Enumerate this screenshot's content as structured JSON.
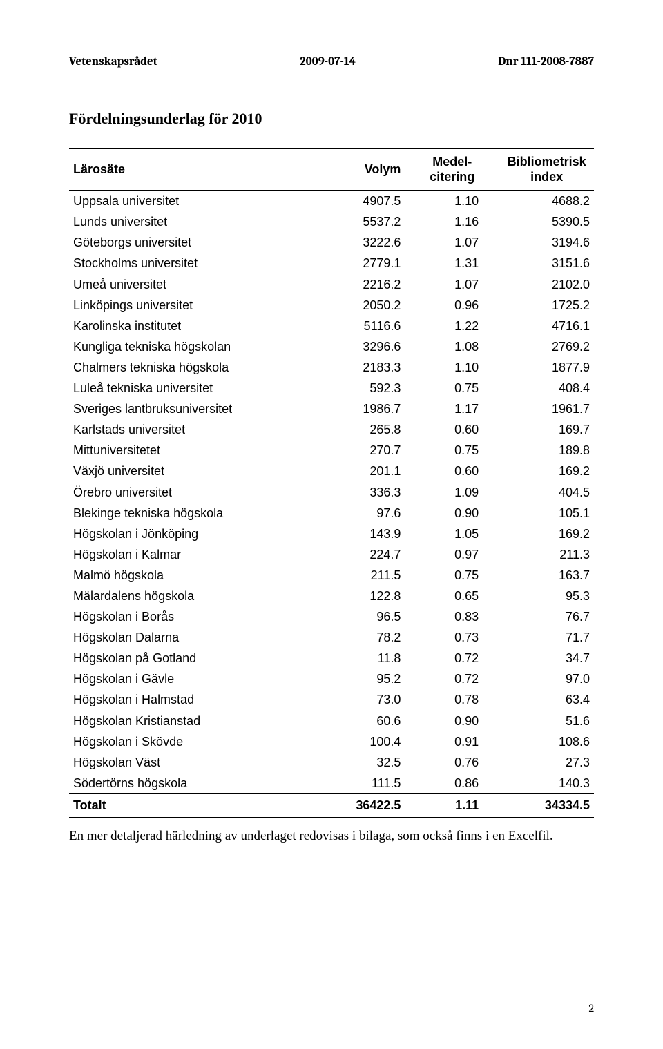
{
  "header": {
    "org": "Vetenskapsrådet",
    "date": "2009-07-14",
    "ref": "Dnr 111-2008-7887"
  },
  "title": "Fördelningsunderlag för 2010",
  "table": {
    "columns": {
      "larosate": "Lärosäte",
      "volym": "Volym",
      "medel_line1": "Medel-",
      "medel_line2": "citering",
      "biblio_line1": "Bibliometrisk",
      "biblio_line2": "index"
    },
    "rows": [
      {
        "name": "Uppsala universitet",
        "volym": "4907.5",
        "medel": "1.10",
        "index": "4688.2"
      },
      {
        "name": "Lunds universitet",
        "volym": "5537.2",
        "medel": "1.16",
        "index": "5390.5"
      },
      {
        "name": "Göteborgs universitet",
        "volym": "3222.6",
        "medel": "1.07",
        "index": "3194.6"
      },
      {
        "name": "Stockholms universitet",
        "volym": "2779.1",
        "medel": "1.31",
        "index": "3151.6"
      },
      {
        "name": "Umeå universitet",
        "volym": "2216.2",
        "medel": "1.07",
        "index": "2102.0"
      },
      {
        "name": "Linköpings universitet",
        "volym": "2050.2",
        "medel": "0.96",
        "index": "1725.2"
      },
      {
        "name": "Karolinska institutet",
        "volym": "5116.6",
        "medel": "1.22",
        "index": "4716.1"
      },
      {
        "name": "Kungliga tekniska högskolan",
        "volym": "3296.6",
        "medel": "1.08",
        "index": "2769.2"
      },
      {
        "name": "Chalmers tekniska högskola",
        "volym": "2183.3",
        "medel": "1.10",
        "index": "1877.9"
      },
      {
        "name": "Luleå tekniska universitet",
        "volym": "592.3",
        "medel": "0.75",
        "index": "408.4"
      },
      {
        "name": "Sveriges lantbruksuniversitet",
        "volym": "1986.7",
        "medel": "1.17",
        "index": "1961.7"
      },
      {
        "name": "Karlstads universitet",
        "volym": "265.8",
        "medel": "0.60",
        "index": "169.7"
      },
      {
        "name": "Mittuniversitetet",
        "volym": "270.7",
        "medel": "0.75",
        "index": "189.8"
      },
      {
        "name": "Växjö universitet",
        "volym": "201.1",
        "medel": "0.60",
        "index": "169.2"
      },
      {
        "name": "Örebro universitet",
        "volym": "336.3",
        "medel": "1.09",
        "index": "404.5"
      },
      {
        "name": "Blekinge tekniska högskola",
        "volym": "97.6",
        "medel": "0.90",
        "index": "105.1"
      },
      {
        "name": "Högskolan i Jönköping",
        "volym": "143.9",
        "medel": "1.05",
        "index": "169.2"
      },
      {
        "name": "Högskolan i Kalmar",
        "volym": "224.7",
        "medel": "0.97",
        "index": "211.3"
      },
      {
        "name": "Malmö högskola",
        "volym": "211.5",
        "medel": "0.75",
        "index": "163.7"
      },
      {
        "name": "Mälardalens högskola",
        "volym": "122.8",
        "medel": "0.65",
        "index": "95.3"
      },
      {
        "name": "Högskolan i Borås",
        "volym": "96.5",
        "medel": "0.83",
        "index": "76.7"
      },
      {
        "name": "Högskolan Dalarna",
        "volym": "78.2",
        "medel": "0.73",
        "index": "71.7"
      },
      {
        "name": "Högskolan på Gotland",
        "volym": "11.8",
        "medel": "0.72",
        "index": "34.7"
      },
      {
        "name": "Högskolan i Gävle",
        "volym": "95.2",
        "medel": "0.72",
        "index": "97.0"
      },
      {
        "name": "Högskolan i Halmstad",
        "volym": "73.0",
        "medel": "0.78",
        "index": "63.4"
      },
      {
        "name": "Högskolan Kristianstad",
        "volym": "60.6",
        "medel": "0.90",
        "index": "51.6"
      },
      {
        "name": "Högskolan i Skövde",
        "volym": "100.4",
        "medel": "0.91",
        "index": "108.6"
      },
      {
        "name": "Högskolan Väst",
        "volym": "32.5",
        "medel": "0.76",
        "index": "27.3"
      },
      {
        "name": "Södertörns högskola",
        "volym": "111.5",
        "medel": "0.86",
        "index": "140.3"
      }
    ],
    "total": {
      "label": "Totalt",
      "volym": "36422.5",
      "medel": "1.11",
      "index": "34334.5"
    }
  },
  "footnote": "En mer detaljerad härledning av underlaget redovisas i bilaga, som också finns i en Excelfil.",
  "page_number": "2"
}
